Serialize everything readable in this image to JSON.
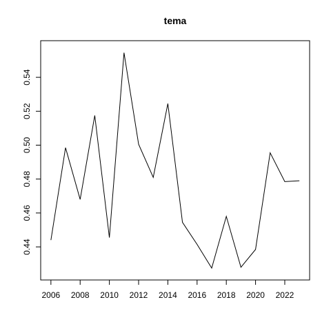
{
  "chart_data": {
    "type": "line",
    "title": "tema",
    "xlabel": "",
    "ylabel": "",
    "x": [
      2006,
      2007,
      2008,
      2009,
      2010,
      2011,
      2012,
      2013,
      2014,
      2015,
      2016,
      2017,
      2018,
      2019,
      2020,
      2021,
      2022,
      2023
    ],
    "series": [
      {
        "values": [
          0.444,
          0.4985,
          0.468,
          0.5175,
          0.4455,
          0.5545,
          0.5005,
          0.481,
          0.5245,
          0.4545,
          0.4415,
          0.4275,
          0.458,
          0.428,
          0.4385,
          0.4955,
          0.4785,
          0.479
        ]
      }
    ],
    "x_ticks": [
      "2006",
      "2008",
      "2010",
      "2012",
      "2014",
      "2016",
      "2018",
      "2020",
      "2022"
    ],
    "x_tick_values": [
      2006,
      2008,
      2010,
      2012,
      2014,
      2016,
      2018,
      2020,
      2022
    ],
    "y_ticks": [
      "0.44",
      "0.46",
      "0.48",
      "0.50",
      "0.52",
      "0.54"
    ],
    "y_tick_values": [
      0.44,
      0.46,
      0.48,
      0.5,
      0.52,
      0.54
    ],
    "xlim": [
      2005.3,
      2023.7
    ],
    "ylim": [
      0.4205,
      0.5616
    ],
    "grid": false,
    "line_color": "#000000"
  }
}
